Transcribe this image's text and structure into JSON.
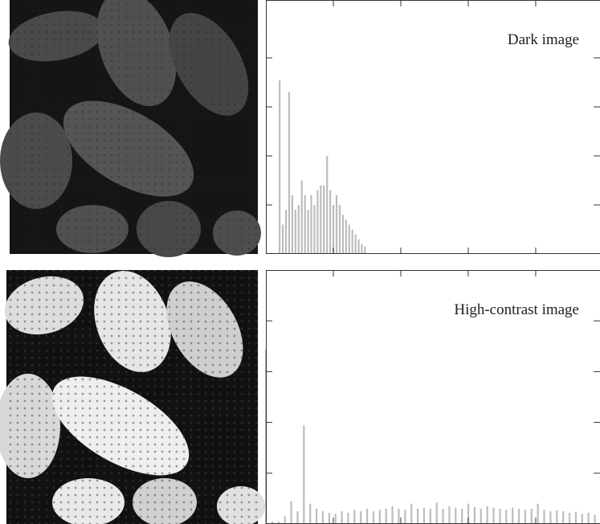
{
  "chart_data": [
    {
      "type": "bar",
      "title": "Dark image",
      "color": "#bdbdbd",
      "x": [
        13,
        16,
        19,
        22,
        25,
        28,
        31,
        34,
        37,
        40,
        43,
        46,
        49,
        52,
        55,
        58,
        61,
        64,
        67,
        70,
        73,
        76,
        79,
        82,
        85,
        88,
        91,
        94
      ],
      "values": [
        3.54,
        0.6,
        0.9,
        3.3,
        1.2,
        0.9,
        1.0,
        1.5,
        1.2,
        0.9,
        1.2,
        1.0,
        1.3,
        1.4,
        1.4,
        2.0,
        1.3,
        1.0,
        1.2,
        1.0,
        0.8,
        0.7,
        0.6,
        0.5,
        0.4,
        0.3,
        0.2,
        0.15
      ],
      "xlim": [
        0,
        317
      ],
      "xticks": [
        64,
        128,
        192,
        256
      ],
      "ylim": [
        0,
        5.18
      ],
      "yticks": [
        1,
        2,
        3,
        4
      ]
    },
    {
      "type": "bar",
      "title": "High-contrast image",
      "color": "#bdbdbd",
      "x": [
        0,
        6,
        12,
        18,
        24,
        30,
        36,
        42,
        48,
        54,
        60,
        66,
        72,
        78,
        84,
        90,
        96,
        102,
        108,
        114,
        120,
        126,
        132,
        138,
        144,
        150,
        156,
        162,
        168,
        174,
        180,
        186,
        192,
        198,
        204,
        210,
        216,
        222,
        228,
        234,
        240,
        246,
        252,
        258,
        264,
        270,
        276,
        282,
        288,
        294,
        300,
        306,
        312
      ],
      "values": [
        3.44,
        0.05,
        0.05,
        0.15,
        0.45,
        0.25,
        1.94,
        0.4,
        0.3,
        0.25,
        0.22,
        0.2,
        0.25,
        0.22,
        0.28,
        0.25,
        0.3,
        0.25,
        0.28,
        0.3,
        0.35,
        0.3,
        0.28,
        0.4,
        0.3,
        0.32,
        0.3,
        0.42,
        0.3,
        0.35,
        0.32,
        0.3,
        0.4,
        0.33,
        0.3,
        0.35,
        0.32,
        0.3,
        0.28,
        0.32,
        0.3,
        0.28,
        0.3,
        0.4,
        0.28,
        0.25,
        0.27,
        0.25,
        0.22,
        0.24,
        0.2,
        0.22,
        0.18
      ],
      "xlim": [
        0,
        317
      ],
      "xticks": [
        64,
        128,
        192,
        256
      ],
      "ylim": [
        0,
        5.0
      ],
      "yticks": [
        1,
        2,
        3,
        4
      ]
    }
  ]
}
